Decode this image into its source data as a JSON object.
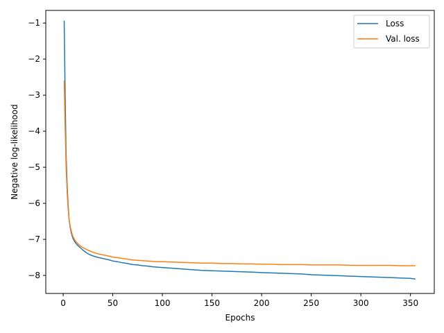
{
  "chart_data": {
    "type": "line",
    "title": "",
    "xlabel": "Epochs",
    "ylabel": "Negative log-likelihood",
    "xlim": [
      -17.5,
      374
    ],
    "ylim": [
      -8.5,
      -0.65
    ],
    "xticks": [
      0,
      50,
      100,
      150,
      200,
      250,
      300,
      350
    ],
    "xtick_labels": [
      "0",
      "50",
      "100",
      "150",
      "200",
      "250",
      "300",
      "350"
    ],
    "yticks": [
      -1,
      -2,
      -3,
      -4,
      -5,
      -6,
      -7,
      -8
    ],
    "ytick_labels": [
      "−1",
      "−2",
      "−3",
      "−4",
      "−5",
      "−6",
      "−7",
      "−8"
    ],
    "grid": false,
    "legend_position": "top-right",
    "series": [
      {
        "name": "Loss",
        "color": "#1f77b4",
        "x": [
          1,
          2,
          3,
          4,
          5,
          6,
          7,
          8,
          9,
          10,
          12,
          14,
          16,
          18,
          20,
          25,
          30,
          35,
          40,
          45,
          50,
          55,
          60,
          65,
          70,
          75,
          80,
          85,
          90,
          95,
          100,
          110,
          120,
          130,
          140,
          150,
          160,
          170,
          180,
          190,
          200,
          210,
          220,
          230,
          240,
          250,
          260,
          270,
          280,
          290,
          300,
          310,
          320,
          330,
          340,
          350,
          355
        ],
        "y": [
          -0.93,
          -3.0,
          -4.7,
          -5.5,
          -6.05,
          -6.45,
          -6.65,
          -6.8,
          -6.9,
          -6.98,
          -7.08,
          -7.15,
          -7.2,
          -7.25,
          -7.3,
          -7.4,
          -7.46,
          -7.5,
          -7.53,
          -7.56,
          -7.6,
          -7.62,
          -7.65,
          -7.67,
          -7.7,
          -7.71,
          -7.73,
          -7.74,
          -7.76,
          -7.77,
          -7.78,
          -7.8,
          -7.82,
          -7.84,
          -7.86,
          -7.87,
          -7.88,
          -7.89,
          -7.9,
          -7.91,
          -7.92,
          -7.93,
          -7.94,
          -7.95,
          -7.96,
          -7.98,
          -7.99,
          -8.0,
          -8.01,
          -8.02,
          -8.03,
          -8.04,
          -8.05,
          -8.06,
          -8.07,
          -8.08,
          -8.1
        ]
      },
      {
        "name": "Val. loss",
        "color": "#ff7f0e",
        "x": [
          1,
          2,
          3,
          4,
          5,
          6,
          7,
          8,
          9,
          10,
          12,
          14,
          16,
          18,
          20,
          25,
          30,
          35,
          40,
          45,
          50,
          55,
          60,
          65,
          70,
          75,
          80,
          85,
          90,
          95,
          100,
          110,
          120,
          130,
          140,
          150,
          160,
          170,
          180,
          190,
          200,
          210,
          220,
          230,
          240,
          250,
          260,
          270,
          280,
          290,
          300,
          310,
          320,
          330,
          340,
          350,
          355
        ],
        "y": [
          -2.6,
          -3.9,
          -5.0,
          -5.7,
          -6.15,
          -6.45,
          -6.62,
          -6.75,
          -6.85,
          -6.93,
          -7.03,
          -7.1,
          -7.15,
          -7.2,
          -7.23,
          -7.3,
          -7.36,
          -7.4,
          -7.43,
          -7.46,
          -7.49,
          -7.51,
          -7.53,
          -7.55,
          -7.57,
          -7.58,
          -7.59,
          -7.6,
          -7.61,
          -7.62,
          -7.62,
          -7.63,
          -7.64,
          -7.65,
          -7.66,
          -7.66,
          -7.67,
          -7.67,
          -7.68,
          -7.68,
          -7.69,
          -7.69,
          -7.7,
          -7.7,
          -7.7,
          -7.71,
          -7.71,
          -7.71,
          -7.71,
          -7.72,
          -7.72,
          -7.72,
          -7.72,
          -7.72,
          -7.73,
          -7.73,
          -7.73
        ]
      }
    ]
  }
}
